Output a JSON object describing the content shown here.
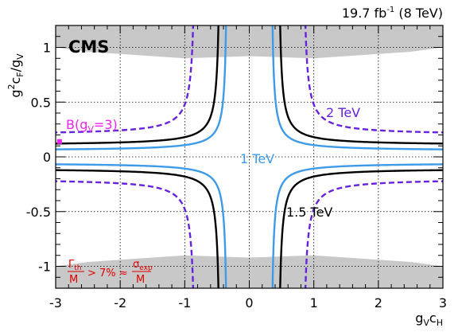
{
  "chart_data": {
    "type": "line",
    "title": "",
    "lumi_label": {
      "value": "19.7 fb",
      "sup": "-1",
      "energy": " (8 TeV)"
    },
    "experiment_label": "CMS",
    "xlabel": {
      "main": "g",
      "sub1": "V",
      "mid": "c",
      "sub2": "H"
    },
    "ylabel": {
      "pre": "g",
      "sup": "2",
      "mid": "c",
      "sub1": "F",
      "slash": "/g",
      "sub2": "V"
    },
    "xlim": [
      -3,
      3
    ],
    "ylim": [
      -1.2,
      1.2
    ],
    "x_ticks": [
      -3,
      -2,
      -1,
      0,
      1,
      2,
      3
    ],
    "x_tick_labels": [
      "-3",
      "-2",
      "-1",
      "0",
      "1",
      "2",
      "3"
    ],
    "y_ticks": [
      -1,
      -0.5,
      0,
      0.5,
      1
    ],
    "y_tick_labels": [
      "-1",
      "-0.5",
      "0",
      "0.5",
      "1"
    ],
    "grid": true,
    "excluded_region": {
      "label_parts": {
        "gamma": "Γ",
        "gamma_sub": "th",
        "den1": "M",
        "relation": "> 7% ≈",
        "sigma": "σ",
        "sigma_sub": "exp",
        "den2": "M"
      },
      "color": "#c8c8c8",
      "boundary_upper": [
        [
          -3.0,
          1.0
        ],
        [
          -2.5,
          0.96
        ],
        [
          -2.0,
          0.94
        ],
        [
          -1.5,
          0.92
        ],
        [
          -1.0,
          0.9
        ],
        [
          -0.5,
          0.91
        ],
        [
          0.0,
          0.92
        ],
        [
          0.5,
          0.91
        ],
        [
          1.0,
          0.9
        ],
        [
          1.5,
          0.92
        ],
        [
          2.0,
          0.94
        ],
        [
          2.5,
          0.96
        ],
        [
          3.0,
          1.0
        ]
      ]
    },
    "series": [
      {
        "name": "1 TeV",
        "color": "#3d9be9",
        "style": "solid",
        "label": "1 TeV",
        "hyperbola": {
          "cH_asym": 0.33,
          "cF_asym": 0.055,
          "k": 0.035
        }
      },
      {
        "name": "1.5 TeV",
        "color": "#000000",
        "style": "solid",
        "label": "1.5 TeV",
        "hyperbola": {
          "cH_asym": 0.44,
          "cF_asym": 0.105,
          "k": 0.042
        }
      },
      {
        "name": "2 TeV",
        "color": "#6622dd",
        "style": "dashed",
        "label": "2 TeV",
        "hyperbola": {
          "cH_asym": 0.82,
          "cF_asym": 0.2,
          "k": 0.05
        }
      }
    ],
    "benchmark": {
      "label_parts": {
        "main": "B(g",
        "sub": "V",
        "end": "=3)"
      },
      "x": -2.94,
      "y": 0.14,
      "color": "#ee22ee"
    }
  }
}
